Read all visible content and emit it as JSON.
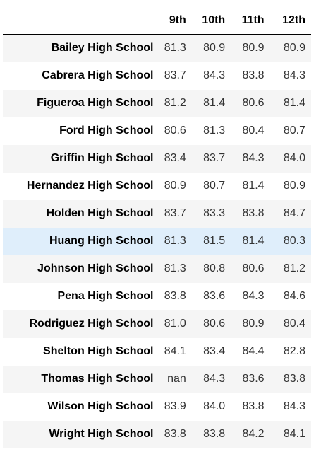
{
  "table": {
    "columns": [
      "9th",
      "10th",
      "11th",
      "12th"
    ],
    "rows": [
      {
        "school": "Bailey High School",
        "values": [
          "81.3",
          "80.9",
          "80.9",
          "80.9"
        ]
      },
      {
        "school": "Cabrera High School",
        "values": [
          "83.7",
          "84.3",
          "83.8",
          "84.3"
        ]
      },
      {
        "school": "Figueroa High School",
        "values": [
          "81.2",
          "81.4",
          "80.6",
          "81.4"
        ]
      },
      {
        "school": "Ford High School",
        "values": [
          "80.6",
          "81.3",
          "80.4",
          "80.7"
        ]
      },
      {
        "school": "Griffin High School",
        "values": [
          "83.4",
          "83.7",
          "84.3",
          "84.0"
        ]
      },
      {
        "school": "Hernandez High School",
        "values": [
          "80.9",
          "80.7",
          "81.4",
          "80.9"
        ]
      },
      {
        "school": "Holden High School",
        "values": [
          "83.7",
          "83.3",
          "83.8",
          "84.7"
        ]
      },
      {
        "school": "Huang High School",
        "values": [
          "81.3",
          "81.5",
          "81.4",
          "80.3"
        ]
      },
      {
        "school": "Johnson High School",
        "values": [
          "81.3",
          "80.8",
          "80.6",
          "81.2"
        ]
      },
      {
        "school": "Pena High School",
        "values": [
          "83.8",
          "83.6",
          "84.3",
          "84.6"
        ]
      },
      {
        "school": "Rodriguez High School",
        "values": [
          "81.0",
          "80.6",
          "80.9",
          "80.4"
        ]
      },
      {
        "school": "Shelton High School",
        "values": [
          "84.1",
          "83.4",
          "84.4",
          "82.8"
        ]
      },
      {
        "school": "Thomas High School",
        "values": [
          "nan",
          "84.3",
          "83.6",
          "83.8"
        ]
      },
      {
        "school": "Wilson High School",
        "values": [
          "83.9",
          "84.0",
          "83.8",
          "84.3"
        ]
      },
      {
        "school": "Wright High School",
        "values": [
          "83.8",
          "83.8",
          "84.2",
          "84.1"
        ]
      }
    ],
    "hovered_row": 7,
    "colors": {
      "stripe": "#f5f5f5",
      "hover": "#dfeefb",
      "header_rule": "#000000"
    }
  }
}
